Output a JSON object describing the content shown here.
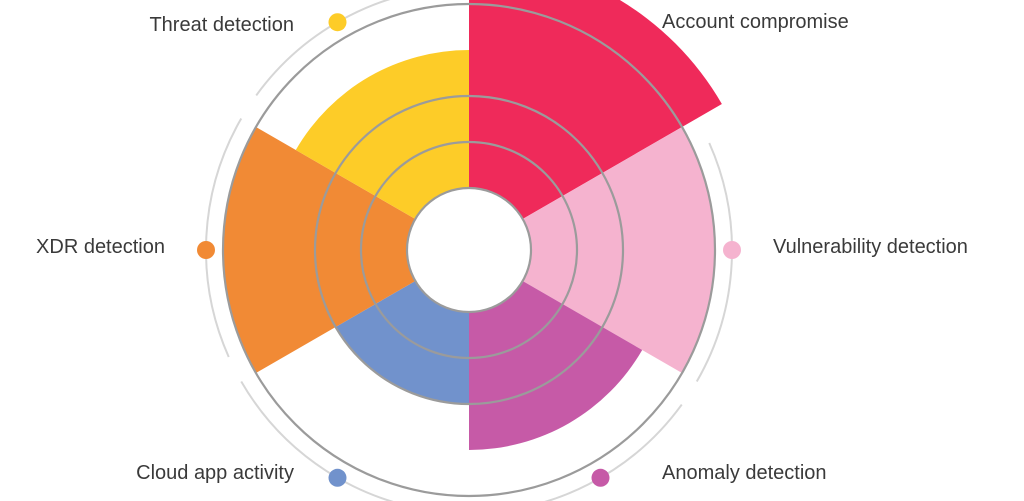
{
  "chart_data": {
    "type": "polar-area",
    "categories": [
      "Account compromise",
      "Vulnerability detection",
      "Anomaly detection",
      "Cloud app activity",
      "XDR detection",
      "Threat detection"
    ],
    "values": [
      5,
      4,
      3,
      2,
      4,
      3
    ],
    "colors": [
      "#ef2a5a",
      "#f5b3cf",
      "#c65aa7",
      "#7192cc",
      "#f18a35",
      "#fdcc28"
    ],
    "grid": true
  },
  "labels": {
    "account_compromise": "Account compromise",
    "vulnerability_detection": "Vulnerability detection",
    "anomaly_detection": "Anomaly detection",
    "cloud_app_activity": "Cloud app activity",
    "xdr_detection": "XDR detection",
    "threat_detection": "Threat detection"
  }
}
